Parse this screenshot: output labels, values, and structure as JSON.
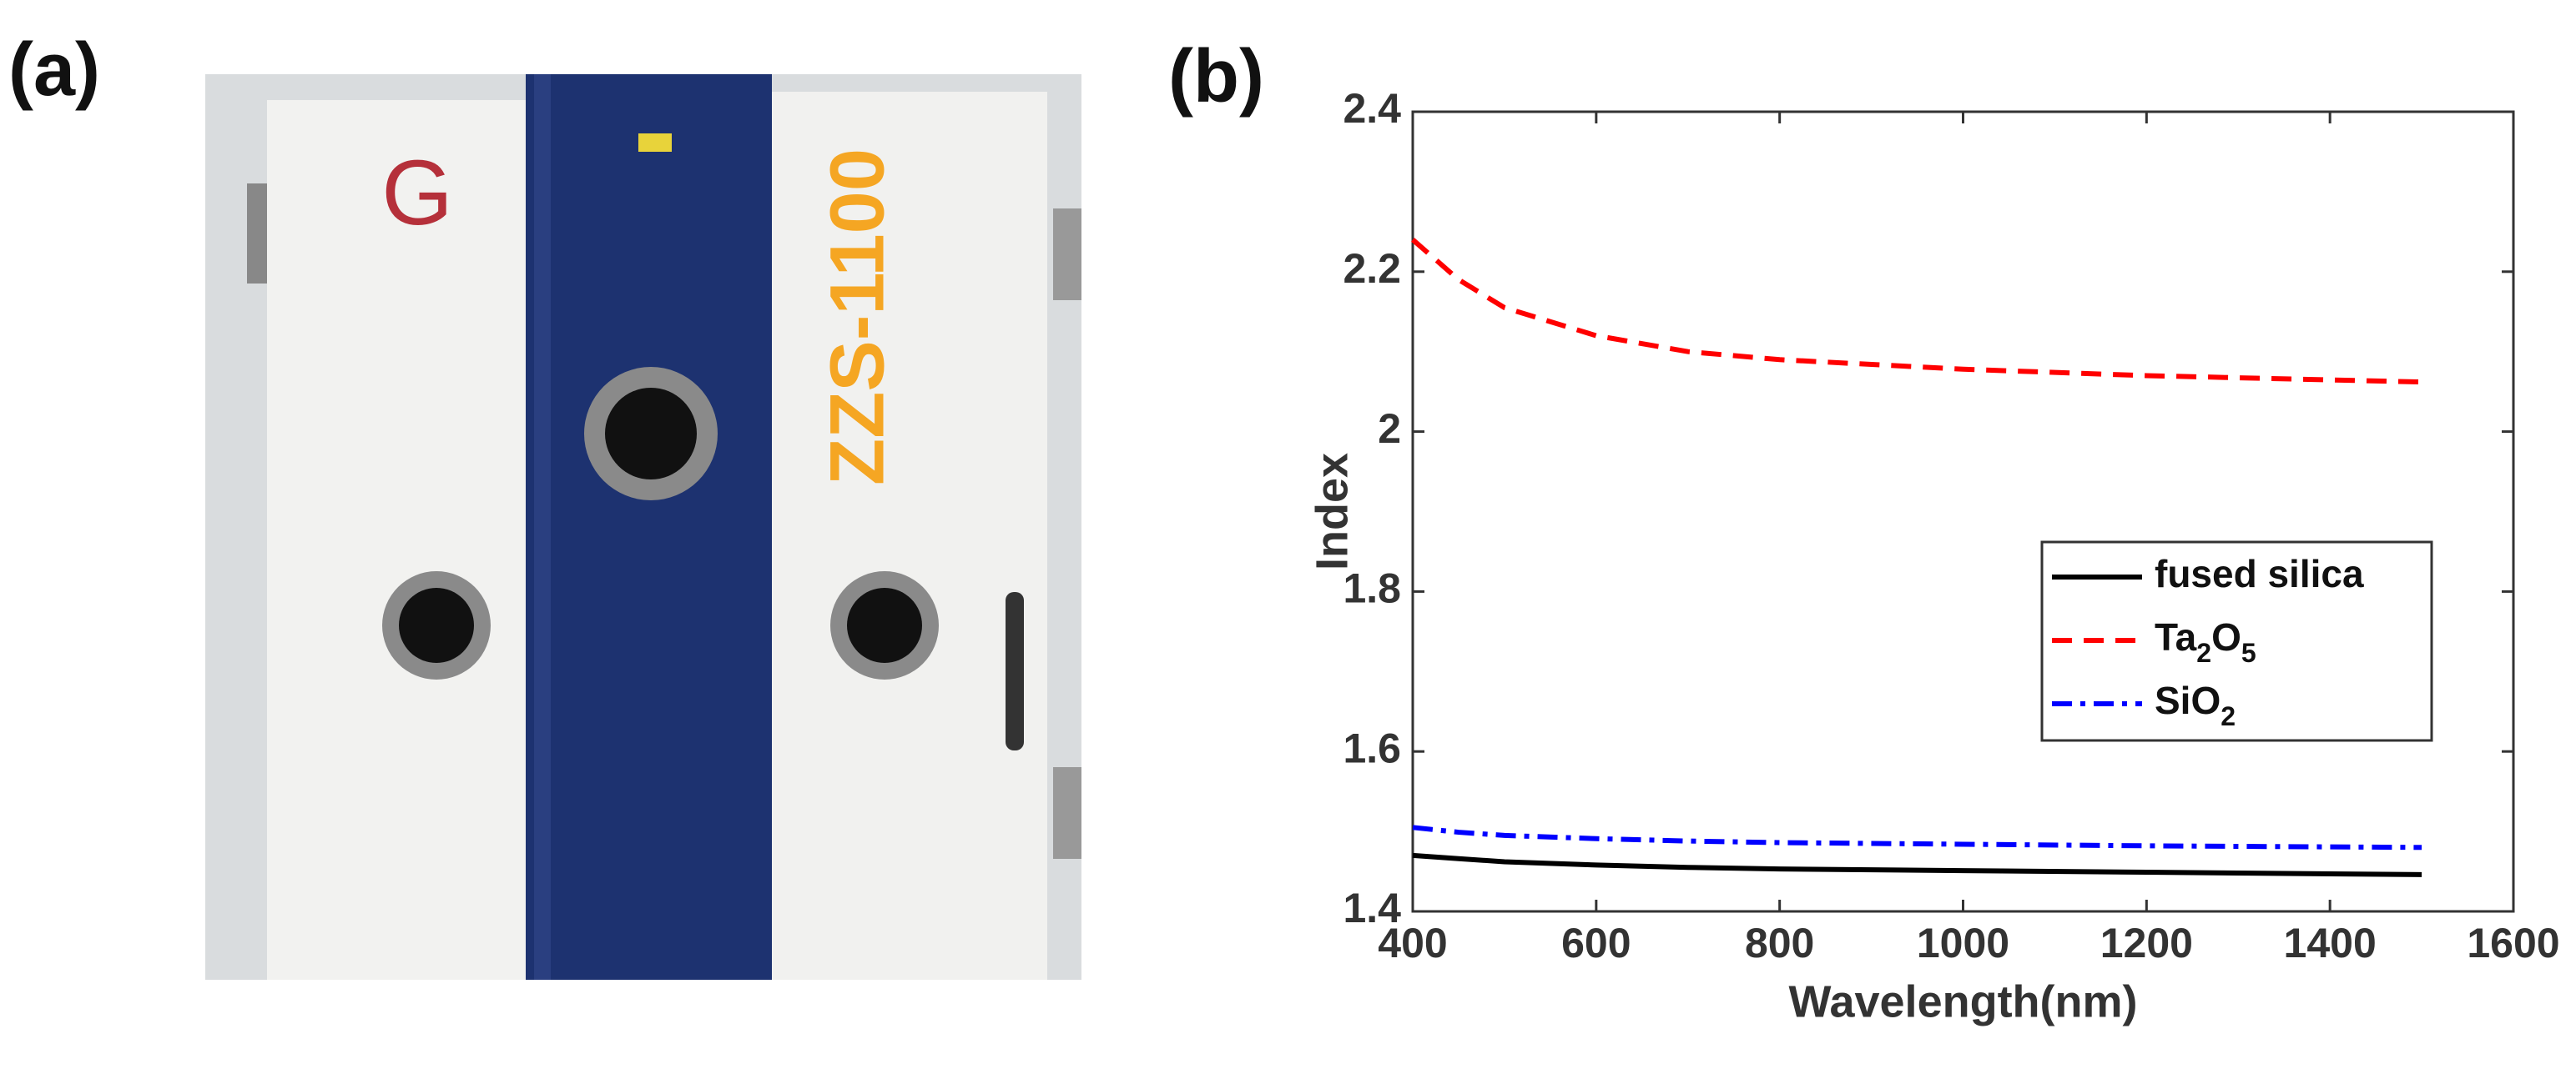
{
  "panel_labels": [
    "(a)",
    "(b)"
  ],
  "photo": {
    "text": "ZZS-1100"
  },
  "chart_data": {
    "type": "line",
    "xlabel": "Wavelength(nm)",
    "ylabel": "Index",
    "x": [
      400,
      450,
      500,
      600,
      700,
      800,
      1000,
      1200,
      1500
    ],
    "series": [
      {
        "name": "fused silica",
        "color": "#000000",
        "dash": "solid",
        "values": [
          1.47,
          1.466,
          1.462,
          1.458,
          1.455,
          1.453,
          1.451,
          1.449,
          1.446
        ]
      },
      {
        "name": "Ta2O5",
        "color": "#ff0000",
        "dash": "dash",
        "values": [
          2.24,
          2.19,
          2.155,
          2.12,
          2.1,
          2.09,
          2.078,
          2.07,
          2.062
        ]
      },
      {
        "name": "SiO2",
        "color": "#0000ff",
        "dash": "dashdot",
        "values": [
          1.505,
          1.499,
          1.495,
          1.491,
          1.488,
          1.486,
          1.484,
          1.482,
          1.48
        ]
      }
    ],
    "xlim": [
      400,
      1600
    ],
    "xticks": [
      400,
      600,
      800,
      1000,
      1200,
      1400,
      1600
    ],
    "ylim": [
      1.4,
      2.4
    ],
    "yticks": [
      1.4,
      1.6,
      1.8,
      2,
      2.2,
      2.4
    ],
    "legend": "east",
    "grid": false
  }
}
